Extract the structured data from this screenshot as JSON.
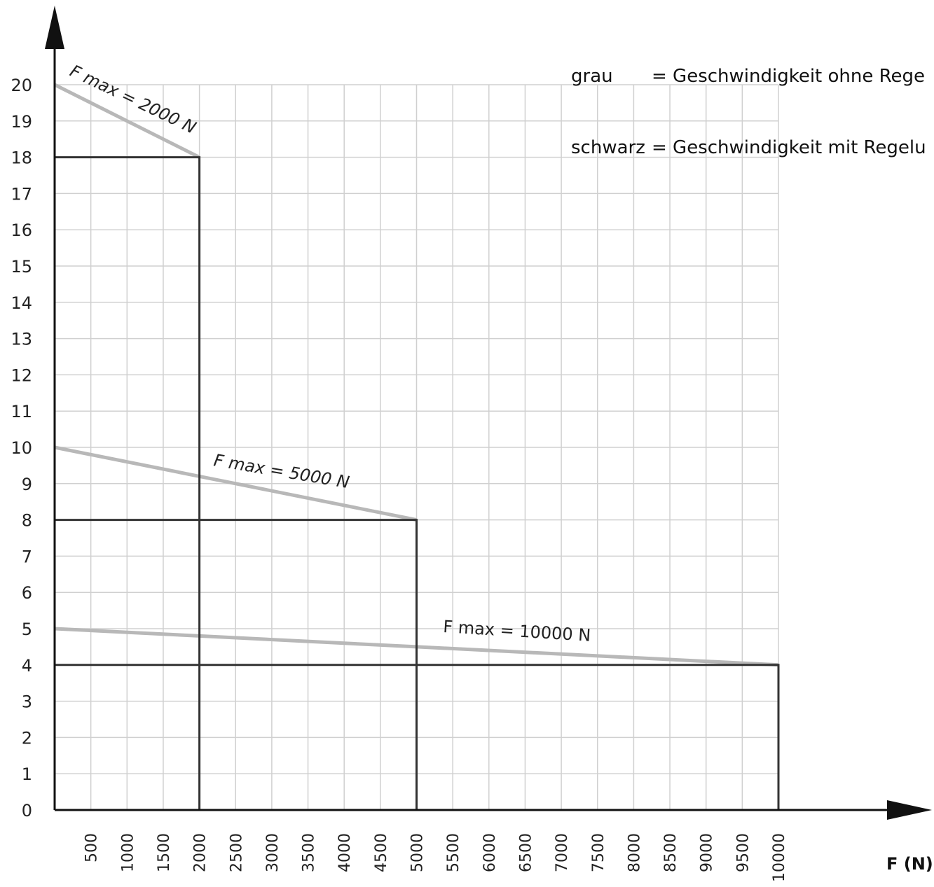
{
  "legend": {
    "grey_key": "grau",
    "grey_text": "= Geschwindigkeit ohne Rege",
    "black_key": "schwarz",
    "black_text": "= Geschwindigkeit mit Regelu"
  },
  "colors": {
    "grid": "#d0d0d0",
    "axis": "#111111",
    "grey_line": "#b8b8b8",
    "black_line": "#333333"
  },
  "chart_data": {
    "type": "line",
    "xlabel": "F (N)",
    "ylabel": "",
    "xlim": [
      0,
      10000
    ],
    "ylim": [
      0,
      20
    ],
    "x_ticks": [
      "500",
      "1000",
      "1500",
      "2000",
      "2500",
      "3000",
      "3500",
      "4000",
      "4500",
      "5000",
      "5500",
      "6000",
      "6500",
      "7000",
      "7500",
      "8000",
      "8500",
      "9000",
      "9500",
      "10000"
    ],
    "y_ticks": [
      "0",
      "1",
      "2",
      "3",
      "4",
      "5",
      "6",
      "7",
      "8",
      "9",
      "10",
      "11",
      "12",
      "13",
      "14",
      "15",
      "16",
      "17",
      "18",
      "19",
      "20"
    ],
    "grid": true,
    "series": [
      {
        "color": "grey",
        "label": "F max = 2000 N",
        "x": [
          0,
          2000
        ],
        "y": [
          20,
          18
        ]
      },
      {
        "color": "black",
        "x": [
          0,
          2000,
          2000
        ],
        "y": [
          18,
          18,
          0
        ]
      },
      {
        "color": "grey",
        "label": "F max = 5000 N",
        "x": [
          0,
          2000,
          5000
        ],
        "y": [
          10,
          9.2,
          8
        ]
      },
      {
        "color": "black",
        "x": [
          0,
          5000,
          5000
        ],
        "y": [
          8,
          8,
          0
        ]
      },
      {
        "color": "grey",
        "label": "F max = 10000 N",
        "x": [
          0,
          2000,
          5000,
          10000
        ],
        "y": [
          5,
          4.8,
          4.5,
          4
        ]
      },
      {
        "color": "black",
        "x": [
          0,
          10000,
          10000
        ],
        "y": [
          4,
          4,
          0
        ]
      }
    ]
  }
}
